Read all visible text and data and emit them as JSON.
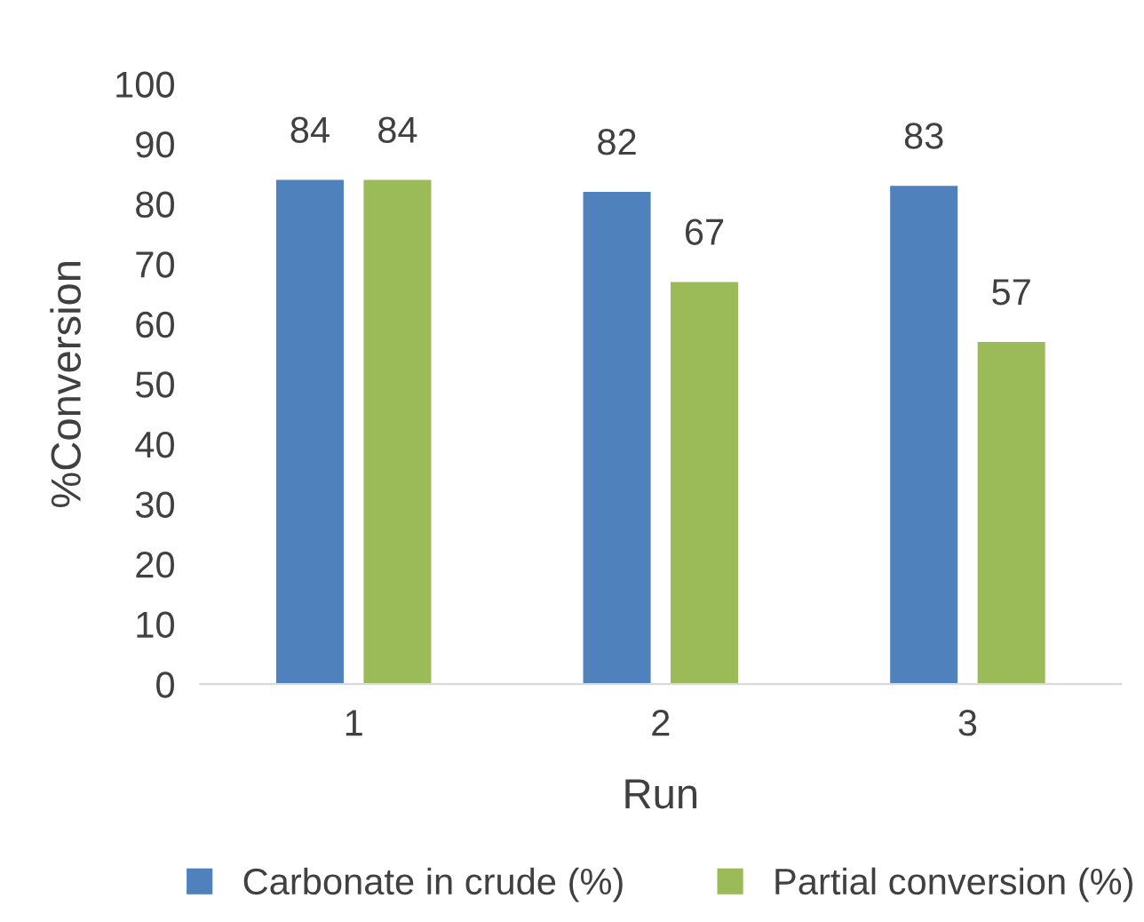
{
  "chart_data": {
    "type": "bar",
    "xlabel": "Run",
    "ylabel": "%Conversion",
    "categories": [
      "1",
      "2",
      "3"
    ],
    "series": [
      {
        "name": "Carbonate in crude (%)",
        "color": "#4f81bd",
        "values": [
          84,
          82,
          83
        ]
      },
      {
        "name": "Partial conversion (%)",
        "color": "#9bbb59",
        "values": [
          84,
          67,
          57
        ]
      }
    ],
    "ylim": [
      0,
      100
    ],
    "yticks": [
      0,
      10,
      20,
      30,
      40,
      50,
      60,
      70,
      80,
      90,
      100
    ],
    "data_labels": true,
    "grid": false,
    "legend": "bottom"
  }
}
